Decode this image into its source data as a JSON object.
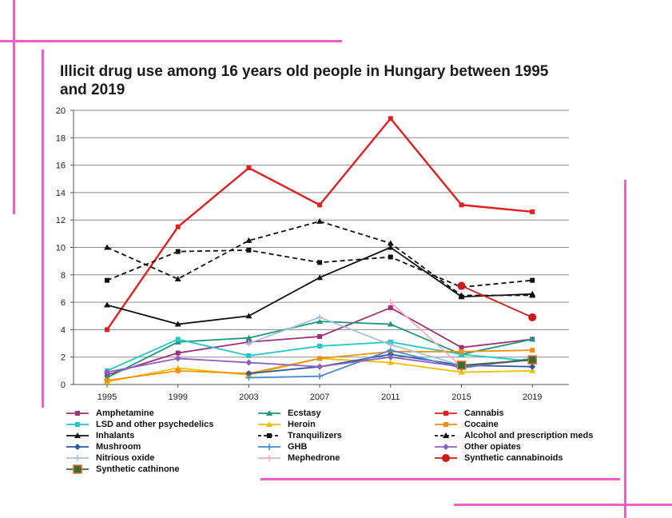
{
  "chart_data": {
    "type": "line",
    "title": "Illicit drug use among 16 years old people in Hungary between 1995 and 2019",
    "xlabel": "",
    "ylabel": "",
    "x": [
      "1995",
      "1999",
      "2003",
      "2007",
      "2011",
      "2015",
      "2019"
    ],
    "ylim": [
      0,
      20
    ],
    "yticks": [
      0,
      2,
      4,
      6,
      8,
      10,
      12,
      14,
      16,
      18,
      20
    ],
    "grid": true,
    "legend_position": "bottom",
    "series": [
      {
        "name": "Amphetamine",
        "color": "#a0307a",
        "marker": "square",
        "dash": false,
        "values": [
          0.7,
          2.3,
          3.1,
          3.5,
          5.6,
          2.7,
          3.3
        ]
      },
      {
        "name": "Ecstasy",
        "color": "#1a9a7a",
        "marker": "triangle",
        "dash": false,
        "values": [
          0.5,
          3.1,
          3.4,
          4.6,
          4.4,
          2.2,
          3.3
        ]
      },
      {
        "name": "Cannabis",
        "color": "#e02020",
        "marker": "square",
        "dash": false,
        "values": [
          4.0,
          11.5,
          15.8,
          13.1,
          19.4,
          13.1,
          12.6
        ]
      },
      {
        "name": "LSD and other psychedelics",
        "color": "#20c8c8",
        "marker": "square",
        "dash": false,
        "values": [
          1.0,
          3.3,
          2.1,
          2.8,
          3.1,
          2.2,
          1.7
        ]
      },
      {
        "name": "Heroin",
        "color": "#f0c000",
        "marker": "triangle",
        "dash": false,
        "values": [
          0.2,
          1.2,
          0.7,
          1.9,
          1.6,
          0.9,
          1.0
        ]
      },
      {
        "name": "Cocaine",
        "color": "#f09010",
        "marker": "square",
        "dash": false,
        "values": [
          0.3,
          1.0,
          0.8,
          1.9,
          2.4,
          2.4,
          2.5
        ]
      },
      {
        "name": "Inhalants",
        "color": "#111111",
        "marker": "triangle",
        "dash": false,
        "values": [
          5.8,
          4.4,
          5.0,
          7.8,
          10.0,
          6.4,
          6.6
        ]
      },
      {
        "name": "Tranquilizers",
        "color": "#111111",
        "marker": "square",
        "dash": true,
        "values": [
          7.6,
          9.7,
          9.8,
          8.9,
          9.3,
          7.1,
          7.6
        ]
      },
      {
        "name": "Alcohol and prescription meds",
        "color": "#111111",
        "marker": "triangle",
        "dash": true,
        "values": [
          10.0,
          7.7,
          10.5,
          11.9,
          10.3,
          6.5,
          6.5
        ]
      },
      {
        "name": "Mushroom",
        "color": "#2a5aa0",
        "marker": "diamond",
        "dash": false,
        "values": [
          null,
          null,
          0.8,
          1.3,
          2.2,
          1.4,
          1.3
        ]
      },
      {
        "name": "GHB",
        "color": "#4a8ad0",
        "marker": "plus",
        "dash": false,
        "values": [
          null,
          null,
          0.5,
          0.6,
          2.5,
          1.2,
          1.9
        ]
      },
      {
        "name": "Other opiates",
        "color": "#9060c0",
        "marker": "diamond",
        "dash": false,
        "values": [
          0.9,
          1.9,
          1.6,
          1.3,
          2.0,
          1.3,
          1.8
        ]
      },
      {
        "name": "Nitrious oxide",
        "color": "#a8c0e0",
        "marker": "plus",
        "dash": false,
        "values": [
          null,
          null,
          3.0,
          4.9,
          2.9,
          1.4,
          null
        ]
      },
      {
        "name": "Mephedrone",
        "color": "#f0b0c0",
        "marker": "plus",
        "dash": false,
        "values": [
          null,
          null,
          null,
          null,
          6.0,
          1.3,
          null
        ]
      },
      {
        "name": "Synthetic cannabinoids",
        "color": "#d01818",
        "marker": "circle",
        "dash": false,
        "values": [
          null,
          null,
          null,
          null,
          null,
          7.2,
          4.9
        ]
      },
      {
        "name": "Synthetic cathinone",
        "color": "#3a6a3a",
        "marker": "bigsquare",
        "dash": false,
        "values": [
          null,
          null,
          null,
          null,
          null,
          1.4,
          1.8
        ]
      }
    ]
  }
}
